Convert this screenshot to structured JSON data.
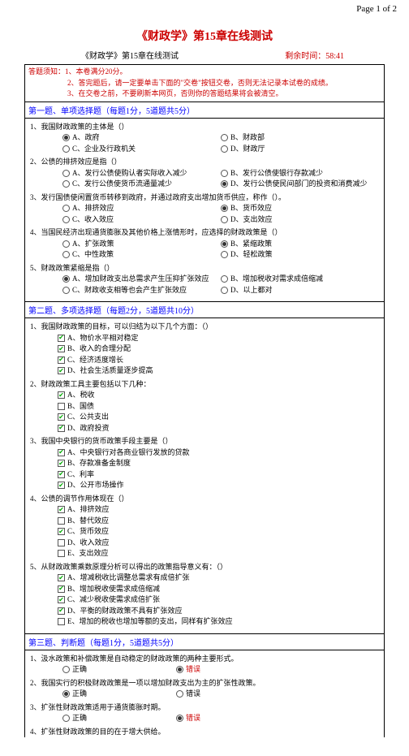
{
  "page_num": "Page 1 of 2",
  "title": "《财政学》第15章在线测试",
  "subtitle": "《财政学》第15章在线测试",
  "time_label": "剩余时间：",
  "time_value": "58:41",
  "notes": [
    "答题须知：1、本卷满分20分。",
    "2、答完题后，请一定要单击下面的\"交卷\"按钮交卷，否则无法记录本试卷的成绩。",
    "3、在交卷之前，不要刷新本网页，否则你的答题结果将会被清空。"
  ],
  "sec1": {
    "header": "第一题、单项选择题（每题1分，5道题共5分）",
    "q1": {
      "stem": "1、我国财政政策的主体是（）",
      "opts": [
        "A、政府",
        "B、财政部",
        "C、企业及行政机关",
        "D、财政厅"
      ],
      "sel": 0
    },
    "q2": {
      "stem": "2、公债的排挤效应是指（）",
      "opts": [
        "A、发行公债使购认者实际收入减少",
        "B、发行公债使银行存款减少",
        "C、发行公债使货币流通量减少",
        "D、发行公债使民间部门的投资和消费减少"
      ],
      "sel": 3
    },
    "q3": {
      "stem": "3、发行国债使闲置货币转移到政府，并通过政府支出增加货币供应，称作（）。",
      "opts": [
        "A、排挤效应",
        "B、货币效应",
        "C、收入效应",
        "D、支出效应"
      ],
      "sel": 1
    },
    "q4": {
      "stem": "4、当国民经济出现通货膨胀及其他价格上涨情形时，应选择的财政政策是（）",
      "opts": [
        "A、扩张政策",
        "B、紧缩政策",
        "C、中性政策",
        "D、轻松政策"
      ],
      "sel": 1
    },
    "q5": {
      "stem": "5、财政政策紧缩是指（）",
      "opts": [
        "A、增加财政支出总需求产生压抑扩张效应",
        "B、增加税收对需求成倍缩减",
        "C、财政收支相等也会产生扩张效应",
        "D、以上都对"
      ],
      "sel": 0
    }
  },
  "sec2": {
    "header": "第二题、多项选择题（每题2分，5道题共10分）",
    "q1": {
      "stem": "1、我国财政政策的目标，可以归结为以下几个方面：（）",
      "opts": [
        "A、物价水平相对稳定",
        "B、收入的合理分配",
        "C、经济适度增长",
        "D、社会生活质量逐步提高"
      ],
      "sel": [
        0,
        1,
        2,
        3
      ]
    },
    "q2": {
      "stem": "2、财政政策工具主要包括以下几种：",
      "opts": [
        "A、税收",
        "B、国债",
        "C、公共支出",
        "D、政府投资"
      ],
      "sel": [
        0,
        2,
        3
      ]
    },
    "q3": {
      "stem": "3、我国中央银行的货币政策手段主要是（）",
      "opts": [
        "A、中央银行对各商业银行发放的贷款",
        "B、存款准备金制度",
        "C、利率",
        "D、公开市场操作"
      ],
      "sel": [
        0,
        1,
        2,
        3
      ]
    },
    "q4": {
      "stem": "4、公债的调节作用体现在（）",
      "opts": [
        "A、排挤效应",
        "B、替代效应",
        "C、货币效应",
        "D、收入效应",
        "E、支出效应"
      ],
      "sel": [
        0,
        2
      ]
    },
    "q5": {
      "stem": "5、从财政政策乘数原理分析可以得出的政策指导意义有：（）",
      "opts": [
        "A、增减税收比调整总需求有成倍扩张",
        "B、增加税收使需求成倍缩减",
        "C、减少税收使需求成倍扩张",
        "D、平衡的财政政策不具有扩张效应",
        "E、增加的税收也增加等额的支出，同样有扩张效应"
      ],
      "sel": [
        0,
        1,
        2,
        3
      ]
    }
  },
  "sec3": {
    "header": "第三题、判断题（每题1分，5道题共5分）",
    "q1": {
      "stem": "1、汲水政策和补偿政策是自动稳定的财政政策的两种主要形式。",
      "t": "正确",
      "f": "错误",
      "sel": "f"
    },
    "q2": {
      "stem": "2、我国实行的积极财政政策是一项以增加财政支出为主的扩张性政策。",
      "t": "正确",
      "f": "错误",
      "sel": "t"
    },
    "q3": {
      "stem": "3、扩张性财政政策适用于通货膨胀时期。",
      "t": "正确",
      "f": "错误",
      "sel": "f"
    },
    "q4": {
      "stem": "4、扩张性财政政策的目的在于增大供给。",
      "t": "",
      "f": "",
      "sel": ""
    }
  }
}
